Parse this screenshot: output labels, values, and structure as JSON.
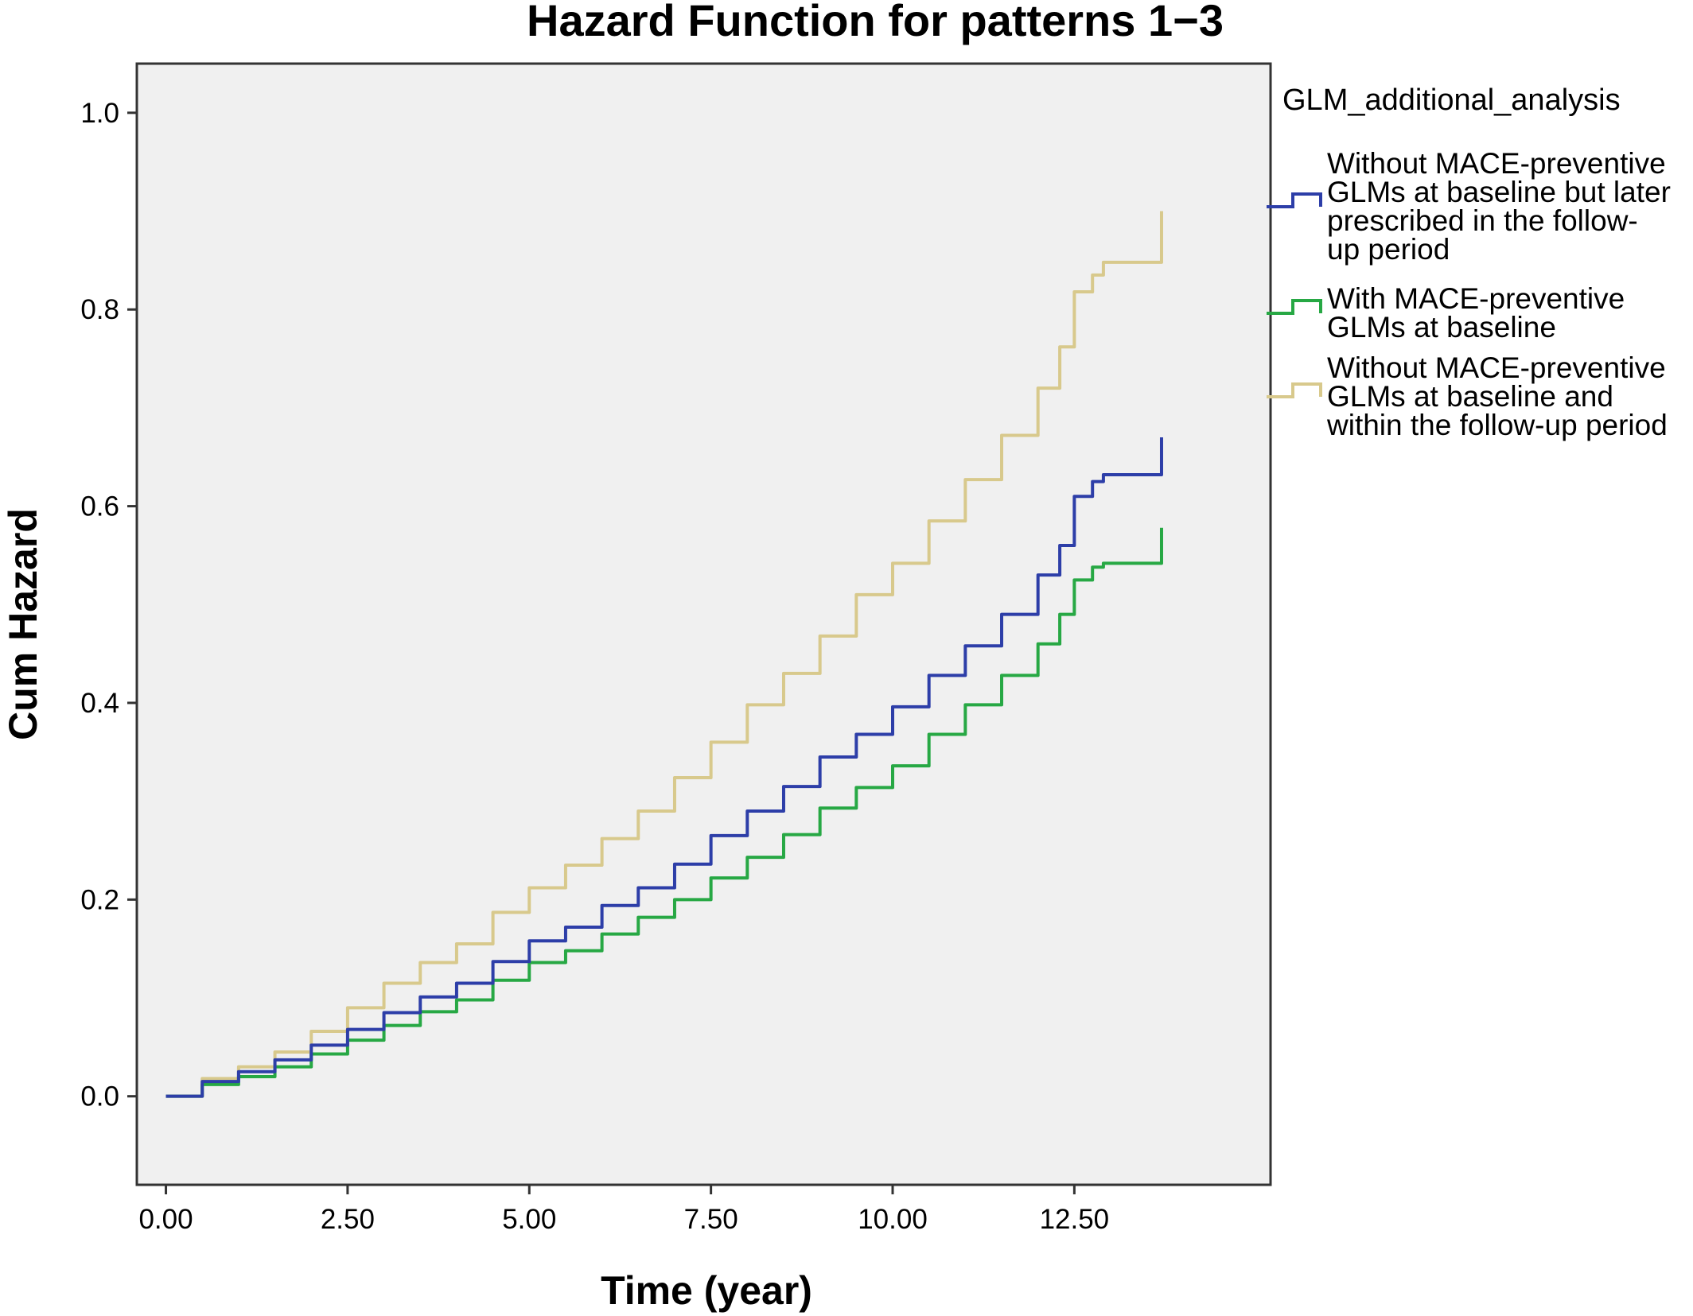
{
  "chart_data": {
    "type": "line",
    "title": "Hazard Function for patterns 1−3",
    "xlabel": "Time (year)",
    "ylabel": "Cum Hazard",
    "xlim": [
      -0.4,
      15.2
    ],
    "ylim": [
      -0.09,
      1.05
    ],
    "xticks": [
      0,
      2.5,
      5,
      7.5,
      10,
      12.5
    ],
    "xtick_labels": [
      "0.00",
      "2.50",
      "5.00",
      "7.50",
      "10.00",
      "12.50"
    ],
    "yticks": [
      0,
      0.2,
      0.4,
      0.6,
      0.8,
      1.0
    ],
    "ytick_labels": [
      "0.0",
      "0.2",
      "0.4",
      "0.6",
      "0.8",
      "1.0"
    ],
    "grid": false,
    "legend": {
      "title": "GLM_additional_analysis",
      "placement": "right"
    },
    "series": [
      {
        "name_lines": [
          "Without MACE-preventive",
          "GLMs at baseline but later",
          "prescribed in the follow-",
          "up period"
        ],
        "color": "#2d3ea8",
        "step": true,
        "x": [
          0,
          0.5,
          1,
          1.5,
          2,
          2.5,
          3,
          3.5,
          4,
          4.5,
          5,
          5.5,
          6,
          6.5,
          7,
          7.5,
          8,
          8.5,
          9,
          9.5,
          10,
          10.5,
          11,
          11.5,
          12,
          12.3,
          12.5,
          12.75,
          12.9,
          13.7,
          13.7
        ],
        "y": [
          0,
          0.015,
          0.025,
          0.037,
          0.052,
          0.068,
          0.085,
          0.101,
          0.115,
          0.137,
          0.158,
          0.172,
          0.194,
          0.212,
          0.236,
          0.265,
          0.29,
          0.315,
          0.345,
          0.368,
          0.396,
          0.428,
          0.458,
          0.49,
          0.53,
          0.56,
          0.61,
          0.625,
          0.632,
          0.632,
          0.67
        ]
      },
      {
        "name_lines": [
          "With MACE-preventive",
          "GLMs at baseline"
        ],
        "color": "#27a844",
        "step": true,
        "x": [
          0,
          0.5,
          1,
          1.5,
          2,
          2.5,
          3,
          3.5,
          4,
          4.5,
          5,
          5.5,
          6,
          6.5,
          7,
          7.5,
          8,
          8.5,
          9,
          9.5,
          10,
          10.5,
          11,
          11.5,
          12,
          12.3,
          12.5,
          12.75,
          12.9,
          13.7,
          13.7
        ],
        "y": [
          0,
          0.012,
          0.02,
          0.03,
          0.043,
          0.057,
          0.072,
          0.086,
          0.098,
          0.118,
          0.136,
          0.148,
          0.165,
          0.182,
          0.2,
          0.222,
          0.243,
          0.266,
          0.293,
          0.314,
          0.336,
          0.368,
          0.398,
          0.428,
          0.46,
          0.49,
          0.525,
          0.538,
          0.542,
          0.542,
          0.578
        ]
      },
      {
        "name_lines": [
          "Without MACE-preventive",
          "GLMs at baseline and",
          "within the follow-up period"
        ],
        "color": "#d8c98c",
        "step": true,
        "x": [
          0,
          0.5,
          1,
          1.5,
          2,
          2.5,
          3,
          3.5,
          4,
          4.5,
          5,
          5.5,
          6,
          6.5,
          7,
          7.5,
          8,
          8.5,
          9,
          9.5,
          10,
          10.5,
          11,
          11.5,
          12,
          12.3,
          12.5,
          12.75,
          12.9,
          13.7,
          13.7
        ],
        "y": [
          0,
          0.018,
          0.03,
          0.045,
          0.066,
          0.09,
          0.115,
          0.136,
          0.155,
          0.187,
          0.212,
          0.235,
          0.262,
          0.29,
          0.324,
          0.36,
          0.398,
          0.43,
          0.468,
          0.51,
          0.542,
          0.585,
          0.627,
          0.672,
          0.72,
          0.762,
          0.818,
          0.835,
          0.848,
          0.848,
          0.9
        ]
      }
    ]
  }
}
